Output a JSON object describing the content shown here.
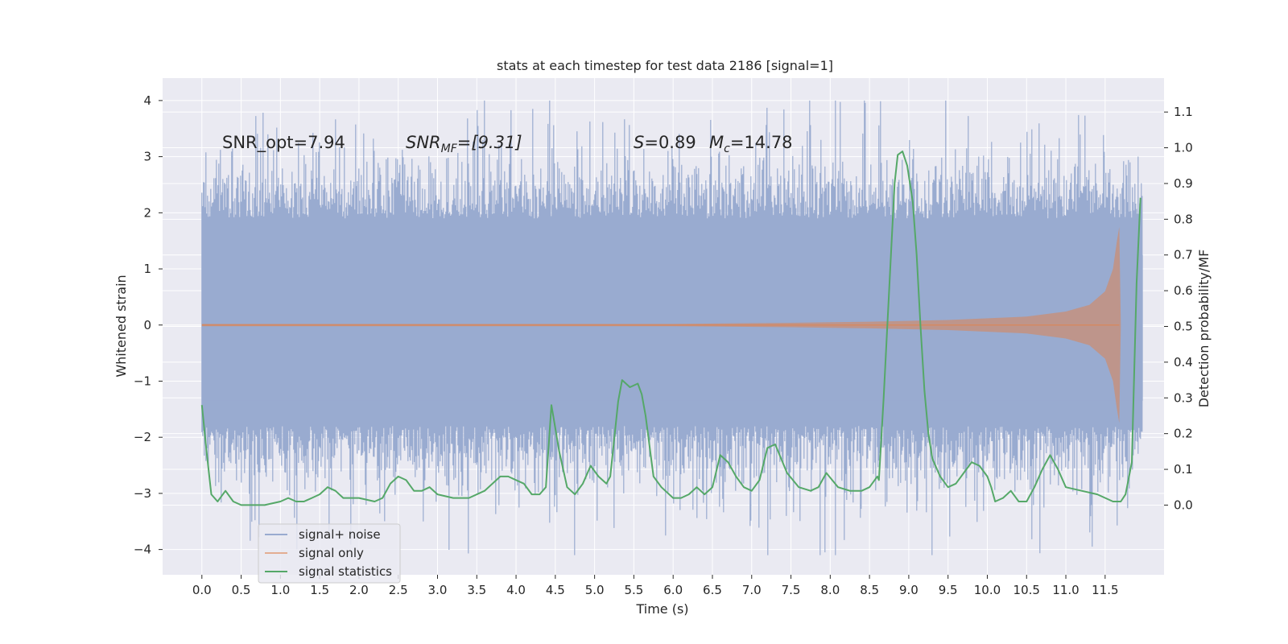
{
  "chart_data": {
    "type": "line",
    "title": "stats at each timestep for test data 2186 [signal=1]",
    "xlabel": "Time (s)",
    "ylabel": "Whitened strain",
    "y2label": "Detection probability/MF",
    "xlim": [
      -0.5,
      12.25
    ],
    "ylim": [
      -4.45,
      4.4
    ],
    "y2lim": [
      -0.195,
      1.195
    ],
    "x_ticks": [
      "0.0",
      "0.5",
      "1.0",
      "1.5",
      "2.0",
      "2.5",
      "3.0",
      "3.5",
      "4.0",
      "4.5",
      "5.0",
      "5.5",
      "6.0",
      "6.5",
      "7.0",
      "7.5",
      "8.0",
      "8.5",
      "9.0",
      "9.5",
      "10.0",
      "10.5",
      "11.0",
      "11.5"
    ],
    "y_ticks": [
      "−4",
      "−3",
      "−2",
      "−1",
      "0",
      "1",
      "2",
      "3",
      "4"
    ],
    "y2_ticks": [
      "0.0",
      "0.1",
      "0.2",
      "0.3",
      "0.4",
      "0.5",
      "0.6",
      "0.7",
      "0.8",
      "0.9",
      "1.0",
      "1.1"
    ],
    "grid": true,
    "annotations": {
      "snr_opt": "SNR_opt=7.94",
      "snr_mf": "SNR",
      "snr_mf_sub": "MF",
      "snr_mf_val": "=[9.31]",
      "s_sym": "S",
      "s_val": "=0.89",
      "mc_sym": "M",
      "mc_sub": "c",
      "mc_val": "=14.78"
    },
    "legend": {
      "location": "lower-left",
      "entries": [
        "signal+ noise",
        "signal only",
        "signal statistics"
      ]
    },
    "colors": {
      "noise": "#99abd0",
      "signal": "#dd8452",
      "stats": "#55a868",
      "background": "#eaeaf2",
      "grid": "#ffffff"
    },
    "series": [
      {
        "name": "signal+ noise",
        "axis": "left",
        "kind": "noise band",
        "x_range": [
          0.0,
          11.98
        ],
        "core_range": [
          -1.8,
          1.9
        ],
        "peak_max": 4.0,
        "peak_min": -4.1
      },
      {
        "name": "signal only",
        "axis": "left",
        "kind": "chirp",
        "envelope": {
          "x": [
            0.0,
            6.0,
            7.5,
            8.5,
            9.5,
            10.5,
            11.0,
            11.3,
            11.5,
            11.6,
            11.65,
            11.68,
            11.7,
            11.98
          ],
          "amp": [
            0.02,
            0.02,
            0.04,
            0.06,
            0.09,
            0.15,
            0.24,
            0.36,
            0.6,
            1.0,
            1.5,
            1.75,
            0.0,
            0.0
          ]
        }
      },
      {
        "name": "signal statistics",
        "axis": "right",
        "x": [
          0.0,
          0.06,
          0.12,
          0.2,
          0.3,
          0.4,
          0.5,
          0.6,
          0.8,
          1.0,
          1.1,
          1.2,
          1.3,
          1.4,
          1.5,
          1.6,
          1.7,
          1.8,
          2.0,
          2.2,
          2.3,
          2.4,
          2.5,
          2.6,
          2.7,
          2.8,
          2.9,
          3.0,
          3.2,
          3.4,
          3.6,
          3.7,
          3.8,
          3.9,
          4.0,
          4.1,
          4.2,
          4.3,
          4.38,
          4.45,
          4.55,
          4.65,
          4.75,
          4.85,
          4.95,
          5.05,
          5.15,
          5.2,
          5.3,
          5.35,
          5.45,
          5.55,
          5.6,
          5.65,
          5.75,
          5.85,
          6.0,
          6.1,
          6.2,
          6.3,
          6.4,
          6.5,
          6.6,
          6.7,
          6.8,
          6.9,
          7.0,
          7.1,
          7.2,
          7.3,
          7.45,
          7.6,
          7.75,
          7.85,
          7.95,
          8.1,
          8.25,
          8.4,
          8.5,
          8.6,
          8.62,
          8.68,
          8.75,
          8.82,
          8.86,
          8.92,
          8.98,
          9.05,
          9.1,
          9.15,
          9.2,
          9.25,
          9.3,
          9.4,
          9.5,
          9.6,
          9.7,
          9.8,
          9.9,
          10.0,
          10.05,
          10.1,
          10.2,
          10.3,
          10.4,
          10.5,
          10.6,
          10.7,
          10.8,
          10.9,
          11.0,
          11.2,
          11.4,
          11.6,
          11.7,
          11.76,
          11.84,
          11.9,
          11.95
        ],
        "y": [
          0.28,
          0.15,
          0.03,
          0.01,
          0.04,
          0.01,
          0.0,
          0.0,
          0.0,
          0.01,
          0.02,
          0.01,
          0.01,
          0.02,
          0.03,
          0.05,
          0.04,
          0.02,
          0.02,
          0.01,
          0.02,
          0.06,
          0.08,
          0.07,
          0.04,
          0.04,
          0.05,
          0.03,
          0.02,
          0.02,
          0.04,
          0.06,
          0.08,
          0.08,
          0.07,
          0.06,
          0.03,
          0.03,
          0.05,
          0.28,
          0.15,
          0.05,
          0.03,
          0.06,
          0.11,
          0.08,
          0.06,
          0.08,
          0.29,
          0.35,
          0.33,
          0.34,
          0.31,
          0.25,
          0.08,
          0.05,
          0.02,
          0.02,
          0.03,
          0.05,
          0.03,
          0.05,
          0.14,
          0.12,
          0.08,
          0.05,
          0.04,
          0.07,
          0.16,
          0.17,
          0.09,
          0.05,
          0.04,
          0.05,
          0.09,
          0.05,
          0.04,
          0.04,
          0.05,
          0.08,
          0.07,
          0.3,
          0.6,
          0.9,
          0.98,
          0.99,
          0.95,
          0.85,
          0.7,
          0.5,
          0.32,
          0.2,
          0.13,
          0.08,
          0.05,
          0.06,
          0.09,
          0.12,
          0.11,
          0.08,
          0.05,
          0.01,
          0.02,
          0.04,
          0.01,
          0.01,
          0.05,
          0.1,
          0.14,
          0.1,
          0.05,
          0.04,
          0.03,
          0.01,
          0.01,
          0.03,
          0.12,
          0.62,
          0.86
        ]
      }
    ]
  }
}
